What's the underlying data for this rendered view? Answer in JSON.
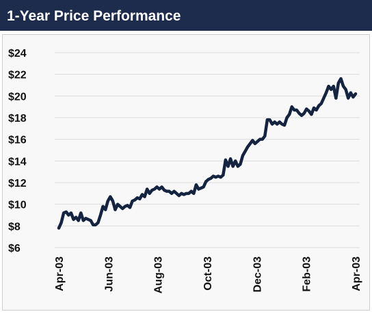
{
  "chart_data": {
    "type": "line",
    "title": "1-Year Price Performance",
    "x_labels": [
      "Apr-03",
      "Jun-03",
      "Aug-03",
      "Oct-03",
      "Dec-03",
      "Feb-03",
      "Apr-03"
    ],
    "series": [
      {
        "name": "Price",
        "color": "#14233f",
        "values": [
          7.8,
          8.3,
          9.2,
          9.3,
          9.0,
          9.2,
          8.6,
          8.8,
          8.5,
          9.2,
          8.5,
          8.7,
          8.6,
          8.5,
          8.1,
          8.1,
          8.3,
          9.0,
          9.8,
          9.5,
          10.3,
          10.7,
          10.3,
          9.5,
          10.0,
          9.8,
          9.6,
          9.8,
          9.9,
          9.7,
          10.3,
          10.4,
          10.6,
          10.5,
          10.9,
          10.7,
          11.4,
          11.0,
          11.3,
          11.4,
          11.6,
          11.4,
          11.6,
          11.3,
          11.2,
          11.2,
          11.0,
          11.2,
          11.0,
          10.8,
          11.0,
          10.9,
          11.0,
          11.0,
          11.2,
          11.0,
          11.8,
          11.4,
          11.5,
          11.6,
          12.1,
          12.3,
          12.4,
          12.6,
          12.5,
          12.6,
          12.5,
          12.7,
          14.1,
          13.5,
          14.2,
          13.5,
          14.0,
          13.5,
          13.7,
          14.5,
          14.9,
          15.3,
          15.6,
          15.9,
          15.6,
          15.8,
          16.0,
          16.0,
          16.3,
          17.8,
          17.8,
          17.4,
          17.6,
          17.4,
          17.6,
          17.4,
          17.3,
          18.0,
          18.3,
          19.0,
          18.7,
          18.7,
          18.4,
          18.2,
          18.4,
          18.8,
          18.6,
          18.3,
          18.9,
          18.7,
          19.1,
          19.3,
          19.8,
          20.3,
          20.9,
          20.6,
          20.9,
          19.8,
          21.2,
          21.6,
          20.9,
          20.6,
          19.8,
          20.3,
          19.9,
          20.2
        ]
      }
    ],
    "ylim": [
      6,
      24
    ],
    "yticks": [
      {
        "value": 6,
        "label": "$6"
      },
      {
        "value": 8,
        "label": "$8"
      },
      {
        "value": 10,
        "label": "$10"
      },
      {
        "value": 12,
        "label": "$12"
      },
      {
        "value": 14,
        "label": "$14"
      },
      {
        "value": 16,
        "label": "$16"
      },
      {
        "value": 18,
        "label": "$18"
      },
      {
        "value": 20,
        "label": "$20"
      },
      {
        "value": 22,
        "label": "$22"
      },
      {
        "value": 24,
        "label": "$24"
      }
    ],
    "grid": true
  }
}
